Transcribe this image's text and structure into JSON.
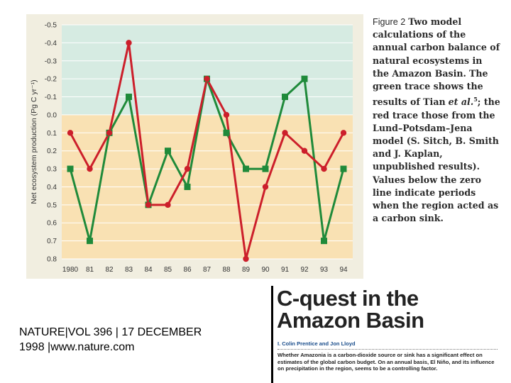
{
  "chart_data": {
    "type": "line",
    "title": "",
    "ylabel": "Net ecosystem production (Pg C yr⁻¹)",
    "xlabel": "",
    "categories": [
      "1980",
      "81",
      "82",
      "83",
      "84",
      "85",
      "86",
      "87",
      "88",
      "89",
      "90",
      "91",
      "92",
      "93",
      "94"
    ],
    "y_tick_labels": [
      "-0.5",
      "-0.4",
      "-0.3",
      "-0.2",
      "-0.1",
      "0.0",
      "0.1",
      "0.2",
      "0.3",
      "0.4",
      "0.5",
      "0.6",
      "0.7",
      "0.8"
    ],
    "ylim": [
      -0.5,
      0.8
    ],
    "y_inverted": true,
    "grid": true,
    "series": [
      {
        "name": "green",
        "color": "#1f8a3a",
        "marker": "square",
        "values": [
          0.3,
          0.7,
          0.1,
          -0.1,
          0.5,
          0.2,
          0.4,
          -0.2,
          0.1,
          0.3,
          0.3,
          -0.1,
          -0.2,
          0.7,
          0.3
        ]
      },
      {
        "name": "red",
        "color": "#cc1f2b",
        "marker": "circle",
        "values": [
          0.1,
          0.3,
          0.1,
          -0.4,
          0.5,
          0.5,
          0.3,
          -0.2,
          0.0,
          0.8,
          0.4,
          0.1,
          0.2,
          0.3,
          0.1
        ]
      }
    ],
    "bands": {
      "upper_color": "#d6ebe2",
      "lower_color": "#f9e1b3"
    }
  },
  "caption": {
    "figure_label": "Figure 2",
    "text_bold": "Two model calculations of the annual carbon balance of natural ecosystems in the Amazon Basin.",
    "text_1": "The green trace shows the results of Tian",
    "italic_1": "et al.",
    "superscript": "5",
    "text_2": "; the red trace those from the Lund–Potsdam–Jena model (S. Sitch, B. Smith and J. Kaplan, unpublished results). Values below the zero line indicate periods when the region acted as a carbon sink."
  },
  "citation": {
    "line1": "NATURE|VOL 396 | 17 DECEMBER",
    "line2": "1998 |www.nature.com"
  },
  "article": {
    "title_line1": "C-quest in the",
    "title_line2": "Amazon Basin",
    "authors": "I. Colin Prentice and Jon Lloyd",
    "summary": "Whether Amazonia is a carbon-dioxide source or sink has a significant effect on estimates of the global carbon budget. On an annual basis, El Niño, and its influence on precipitation in the region, seems to be a controlling factor."
  }
}
